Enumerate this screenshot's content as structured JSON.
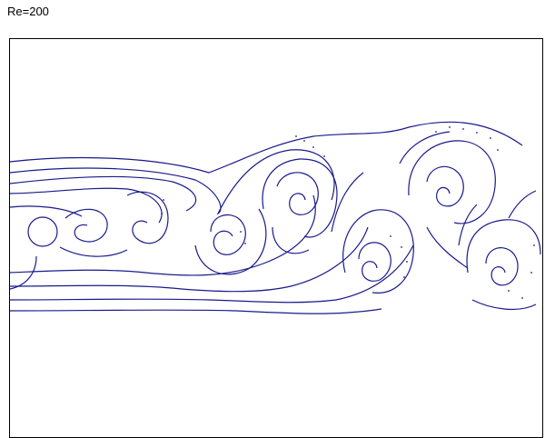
{
  "header": {
    "label": "Re=200"
  },
  "plot": {
    "line_color": "#1a1a8c",
    "background": "#ffffff",
    "frame_color": "#000000"
  }
}
